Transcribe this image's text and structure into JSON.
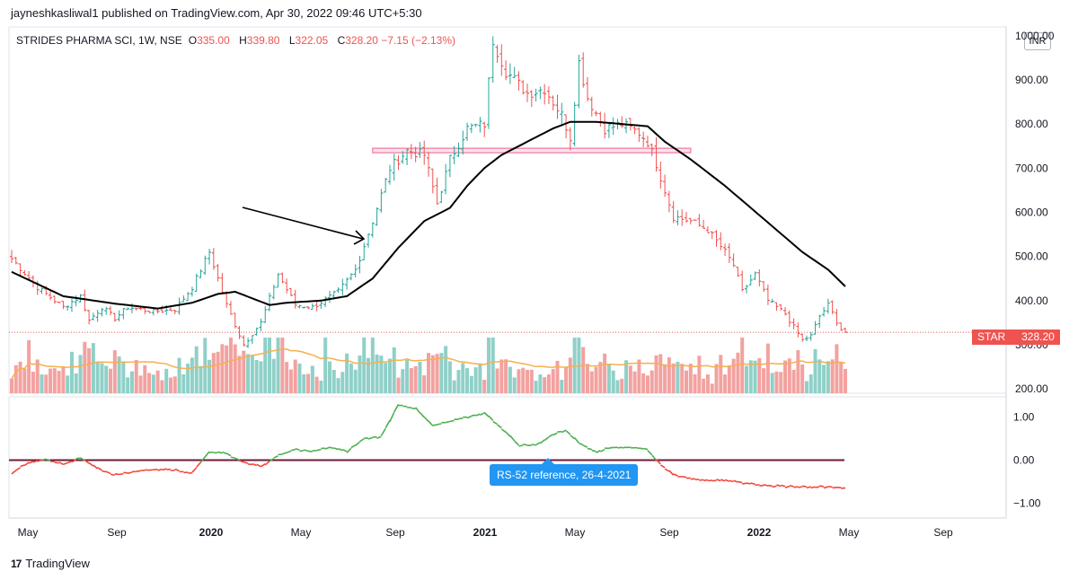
{
  "header": {
    "publisher_line": "jayneshkasliwal1 published on TradingView.com, Apr 30, 2022 09:46 UTC+5:30"
  },
  "legend": {
    "symbol": "STRIDES PHARMA SCI, 1W, NSE",
    "o_label": "O",
    "o_value": "335.00",
    "h_label": "H",
    "h_value": "339.80",
    "l_label": "L",
    "l_value": "322.05",
    "c_label": "C",
    "c_value": "328.20",
    "change": "−7.15 (−2.13%)"
  },
  "currency_button": "INR",
  "price_tag": {
    "ticker": "STAR",
    "value": "328.20"
  },
  "rs_tag": "RS-52 reference, 26-4-2021",
  "footer": {
    "logo_mark": "17",
    "logo_text": "TradingView"
  },
  "colors": {
    "up": "#26a69a",
    "down": "#ef5350",
    "vol_up": "#8fd0c8",
    "vol_down": "#f2a2a0",
    "sma": "#000000",
    "vol_ma": "#f5b04d",
    "rs_pos": "#4caf50",
    "rs_neg": "#f44336",
    "zero_line": "#6b1b3a",
    "zone": "#f48fb1"
  },
  "chart_data": {
    "type": "candlestick",
    "interval": "1W",
    "price_axis": {
      "range": [
        190,
        1020
      ],
      "ticks": [
        "1000.00",
        "900.00",
        "800.00",
        "700.00",
        "600.00",
        "500.00",
        "400.00",
        "300.00",
        "200.00"
      ]
    },
    "x_axis": {
      "ticks": [
        "May",
        "Sep",
        "2020",
        "May",
        "Sep",
        "2021",
        "May",
        "Sep",
        "2022",
        "May",
        "Sep"
      ],
      "bold_ticks": [
        "2020",
        "2021",
        "2022"
      ]
    },
    "rs_axis": {
      "range": [
        -1.35,
        1.35
      ],
      "ticks": [
        "1.00",
        "0.00",
        "−1.00"
      ]
    },
    "last_close": 328.2,
    "resistance_zone": {
      "from_week": 84,
      "to_week": 158,
      "low": 735,
      "high": 745
    },
    "anchors_close": [
      [
        0,
        495
      ],
      [
        6,
        430
      ],
      [
        12,
        385
      ],
      [
        16,
        410
      ],
      [
        18,
        355
      ],
      [
        21,
        385
      ],
      [
        24,
        360
      ],
      [
        27,
        385
      ],
      [
        33,
        375
      ],
      [
        38,
        380
      ],
      [
        42,
        430
      ],
      [
        46,
        510
      ],
      [
        50,
        390
      ],
      [
        54,
        300
      ],
      [
        58,
        350
      ],
      [
        62,
        460
      ],
      [
        66,
        390
      ],
      [
        70,
        385
      ],
      [
        76,
        420
      ],
      [
        80,
        470
      ],
      [
        84,
        580
      ],
      [
        88,
        700
      ],
      [
        92,
        740
      ],
      [
        96,
        730
      ],
      [
        99,
        620
      ],
      [
        102,
        720
      ],
      [
        106,
        790
      ],
      [
        110,
        800
      ],
      [
        112,
        990
      ],
      [
        115,
        920
      ],
      [
        120,
        870
      ],
      [
        124,
        880
      ],
      [
        128,
        820
      ],
      [
        130,
        770
      ],
      [
        132,
        940
      ],
      [
        134,
        860
      ],
      [
        138,
        790
      ],
      [
        142,
        800
      ],
      [
        146,
        780
      ],
      [
        148,
        760
      ],
      [
        150,
        710
      ],
      [
        152,
        650
      ],
      [
        154,
        590
      ],
      [
        158,
        580
      ],
      [
        162,
        560
      ],
      [
        166,
        510
      ],
      [
        168,
        480
      ],
      [
        170,
        420
      ],
      [
        173,
        460
      ],
      [
        176,
        400
      ],
      [
        180,
        370
      ],
      [
        184,
        310
      ],
      [
        186,
        320
      ],
      [
        188,
        365
      ],
      [
        190,
        390
      ],
      [
        193,
        335
      ],
      [
        194,
        328.2
      ]
    ],
    "sma_points": [
      [
        0,
        465
      ],
      [
        12,
        410
      ],
      [
        24,
        393
      ],
      [
        34,
        382
      ],
      [
        42,
        395
      ],
      [
        48,
        415
      ],
      [
        52,
        420
      ],
      [
        56,
        405
      ],
      [
        60,
        390
      ],
      [
        64,
        395
      ],
      [
        72,
        400
      ],
      [
        78,
        410
      ],
      [
        84,
        450
      ],
      [
        90,
        520
      ],
      [
        96,
        580
      ],
      [
        102,
        610
      ],
      [
        106,
        660
      ],
      [
        110,
        700
      ],
      [
        114,
        730
      ],
      [
        120,
        760
      ],
      [
        126,
        790
      ],
      [
        130,
        805
      ],
      [
        136,
        805
      ],
      [
        142,
        800
      ],
      [
        148,
        795
      ],
      [
        152,
        760
      ],
      [
        158,
        720
      ],
      [
        166,
        660
      ],
      [
        172,
        610
      ],
      [
        178,
        560
      ],
      [
        184,
        510
      ],
      [
        190,
        470
      ],
      [
        194,
        432
      ]
    ],
    "rs_52": [
      [
        0,
        -0.3
      ],
      [
        4,
        -0.05
      ],
      [
        8,
        0.03
      ],
      [
        12,
        -0.1
      ],
      [
        16,
        0.05
      ],
      [
        20,
        -0.2
      ],
      [
        24,
        -0.35
      ],
      [
        30,
        -0.25
      ],
      [
        36,
        -0.2
      ],
      [
        42,
        -0.3
      ],
      [
        46,
        0.2
      ],
      [
        50,
        0.15
      ],
      [
        54,
        -0.05
      ],
      [
        58,
        -0.15
      ],
      [
        62,
        0.1
      ],
      [
        66,
        0.25
      ],
      [
        70,
        0.2
      ],
      [
        74,
        0.3
      ],
      [
        78,
        0.2
      ],
      [
        82,
        0.5
      ],
      [
        86,
        0.55
      ],
      [
        90,
        1.3
      ],
      [
        94,
        1.2
      ],
      [
        98,
        0.8
      ],
      [
        102,
        0.9
      ],
      [
        106,
        1.0
      ],
      [
        110,
        1.1
      ],
      [
        114,
        0.75
      ],
      [
        118,
        0.35
      ],
      [
        122,
        0.35
      ],
      [
        126,
        0.6
      ],
      [
        129,
        0.7
      ],
      [
        132,
        0.4
      ],
      [
        136,
        0.2
      ],
      [
        140,
        0.3
      ],
      [
        144,
        0.3
      ],
      [
        148,
        0.25
      ],
      [
        150,
        0.0
      ],
      [
        154,
        -0.35
      ],
      [
        160,
        -0.45
      ],
      [
        168,
        -0.5
      ],
      [
        176,
        -0.6
      ],
      [
        184,
        -0.62
      ],
      [
        190,
        -0.62
      ],
      [
        194,
        -0.65
      ]
    ],
    "rs_reference_value": 0.0
  }
}
